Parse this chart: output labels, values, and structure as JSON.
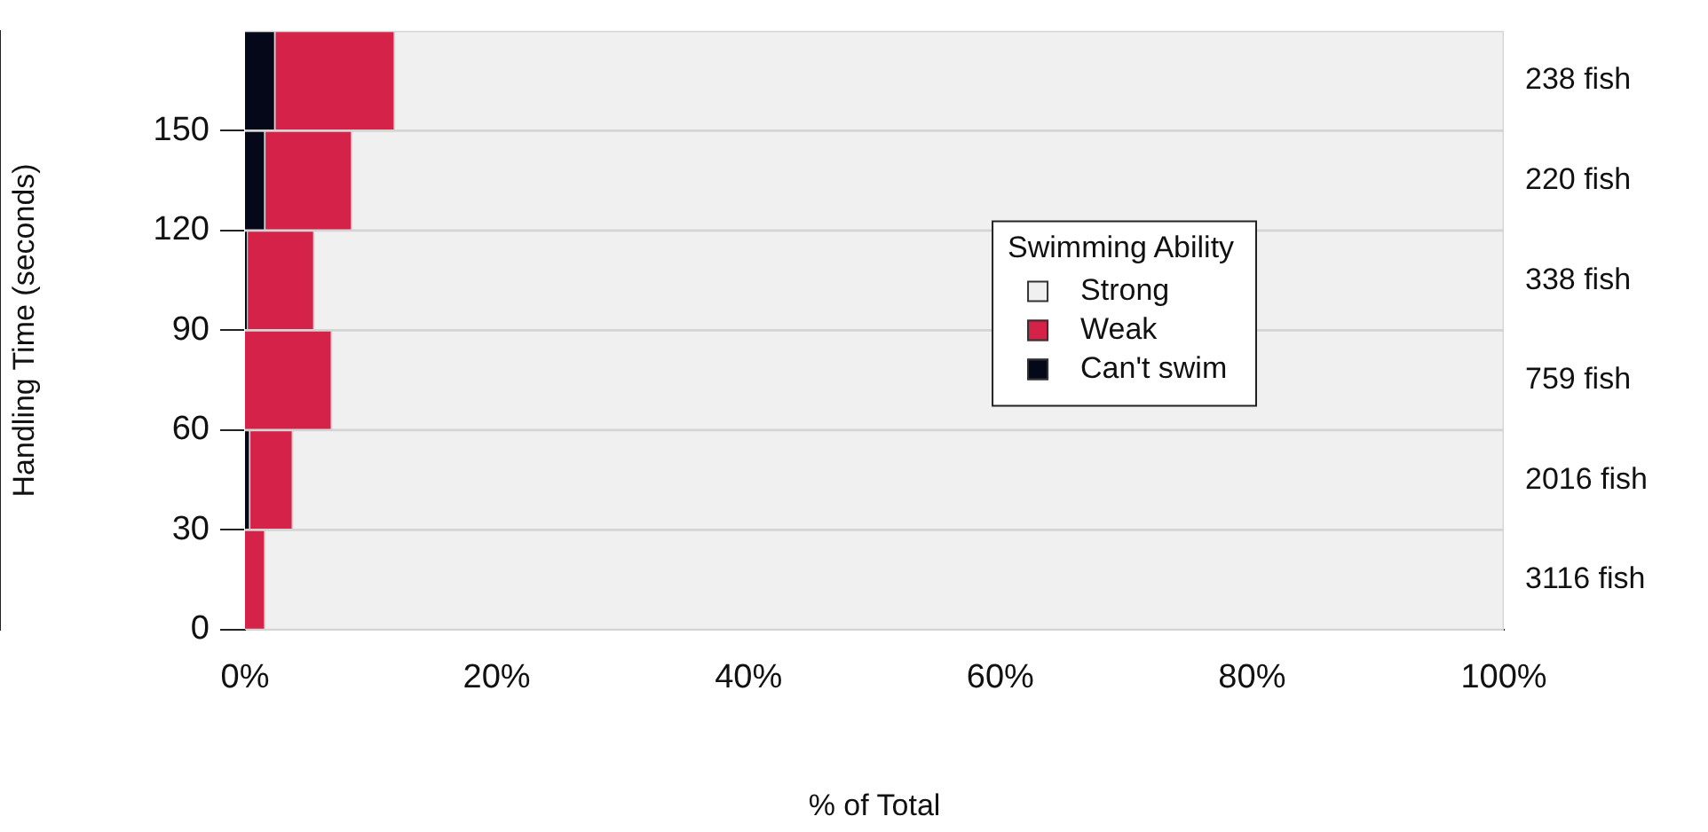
{
  "chart_data": {
    "type": "bar",
    "orientation": "horizontal",
    "stacked": true,
    "xlabel": "% of Total",
    "ylabel": "Handling Time (seconds)",
    "legend_title": "Swimming Ability",
    "legend": "right",
    "x": [
      15,
      45,
      75,
      105,
      135,
      165
    ],
    "series": [
      {
        "name": "Can't swim",
        "color": "#050818",
        "values": [
          0,
          0.4,
          0,
          0.2,
          1.6,
          2.4
        ]
      },
      {
        "name": "Weak",
        "color": "#d42248",
        "values": [
          1.6,
          3.4,
          6.9,
          5.3,
          6.9,
          9.5
        ]
      },
      {
        "name": "Strong",
        "color": "#f0f0f0",
        "values": [
          98.4,
          96.2,
          93.1,
          94.5,
          91.5,
          88.1
        ]
      }
    ],
    "xlim": [
      0,
      100
    ],
    "xticks": [
      {
        "value": 0,
        "label": "0%"
      },
      {
        "value": 20,
        "label": "20%"
      },
      {
        "value": 40,
        "label": "40%"
      },
      {
        "value": 60,
        "label": "60%"
      },
      {
        "value": 80,
        "label": "80%"
      },
      {
        "value": 100,
        "label": "100%"
      }
    ],
    "ylim": [
      0,
      180
    ],
    "yticks": [
      0,
      30,
      60,
      90,
      120,
      150
    ],
    "grid": "y",
    "annotations": [
      "3116 fish",
      "2016 fish",
      "759 fish",
      "338 fish",
      "220 fish",
      "238 fish"
    ]
  }
}
